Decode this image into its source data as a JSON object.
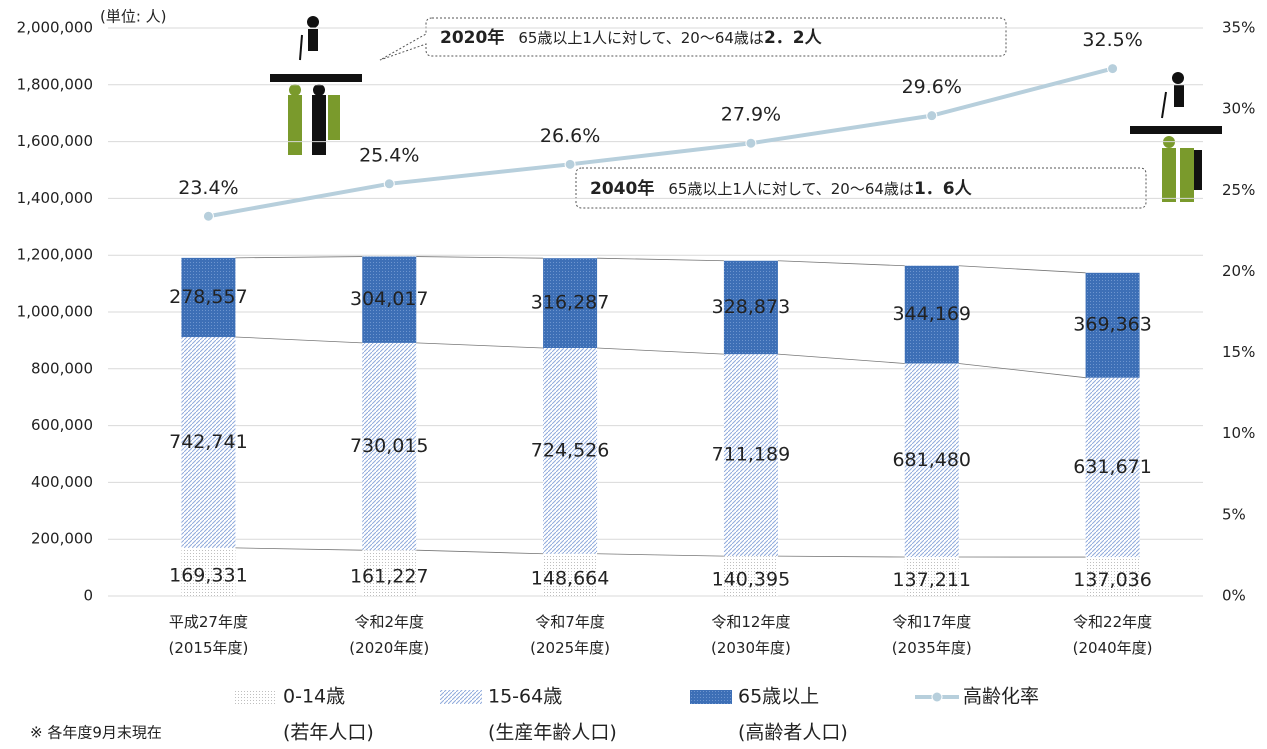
{
  "chart_data": {
    "type": "stacked-bar-line",
    "unit": "(単位: 人)",
    "note": "※  各年度9月末現在",
    "categories": [
      [
        "平成27年度",
        "(2015年度)"
      ],
      [
        "令和2年度",
        "(2020年度)"
      ],
      [
        "令和7年度",
        "(2025年度)"
      ],
      [
        "令和12年度",
        "(2030年度)"
      ],
      [
        "令和17年度",
        "(2035年度)"
      ],
      [
        "令和22年度",
        "(2040年度)"
      ]
    ],
    "series": [
      {
        "name": "0-14歳",
        "sublabel": "(若年人口)",
        "color": "#bfbfbf",
        "pattern": "dots",
        "values": [
          169331,
          161227,
          148664,
          140395,
          137211,
          137036
        ],
        "value_labels": [
          "169,331",
          "161,227",
          "148,664",
          "140,395",
          "137,211",
          "137,036"
        ]
      },
      {
        "name": "15-64歳",
        "sublabel": "(生産年齢人口)",
        "color": "#8faadc",
        "pattern": "hatch",
        "values": [
          742741,
          730015,
          724526,
          711189,
          681480,
          631671
        ],
        "value_labels": [
          "742,741",
          "730,015",
          "724,526",
          "711,189",
          "681,480",
          "631,671"
        ]
      },
      {
        "name": "65歳以上",
        "sublabel": "(高齢者人口)",
        "color": "#3d6fb6",
        "pattern": "solid-dots",
        "values": [
          278557,
          304017,
          316287,
          328873,
          344169,
          369363
        ],
        "value_labels": [
          "278,557",
          "304,017",
          "316,287",
          "328,873",
          "344,169",
          "369,363"
        ]
      },
      {
        "name": "高齢化率",
        "type": "line",
        "axis": "y2",
        "color": "#b7cfdc",
        "values": [
          23.4,
          25.4,
          26.6,
          27.9,
          29.6,
          32.5
        ],
        "value_labels": [
          "23.4%",
          "25.4%",
          "26.6%",
          "27.9%",
          "29.6%",
          "32.5%"
        ]
      }
    ],
    "ylim": [
      0,
      2000000
    ],
    "yticks": [
      0,
      {
        "value": 200000,
        "label": "200,000"
      },
      {
        "value": 400000,
        "label": "400,000"
      },
      {
        "value": 600000,
        "label": "600,000"
      },
      {
        "value": 800000,
        "label": "800,000"
      },
      {
        "value": 1000000,
        "label": "1,000,000"
      },
      {
        "value": 1200000,
        "label": "1,200,000"
      },
      {
        "value": 1400000,
        "label": "1,400,000"
      },
      {
        "value": 1600000,
        "label": "1,600,000"
      },
      {
        "value": 1800000,
        "label": "1,800,000"
      },
      {
        "value": 2000000,
        "label": "2,000,000"
      }
    ],
    "y2lim": [
      0,
      35
    ],
    "y2ticks": [
      {
        "value": 0,
        "label": "0%"
      },
      {
        "value": 5,
        "label": "5%"
      },
      {
        "value": 10,
        "label": "10%"
      },
      {
        "value": 15,
        "label": "15%"
      },
      {
        "value": 20,
        "label": "20%"
      },
      {
        "value": 25,
        "label": "25%"
      },
      {
        "value": 30,
        "label": "30%"
      },
      {
        "value": 35,
        "label": "35%"
      }
    ],
    "grid": true,
    "annotations": [
      {
        "parts": [
          "2020年",
          "65歳以上1人に対して、20〜64歳は",
          "2．2人"
        ]
      },
      {
        "parts": [
          "2040年",
          "65歳以上1人に対して、20〜64歳は",
          "1．6人"
        ]
      }
    ]
  }
}
